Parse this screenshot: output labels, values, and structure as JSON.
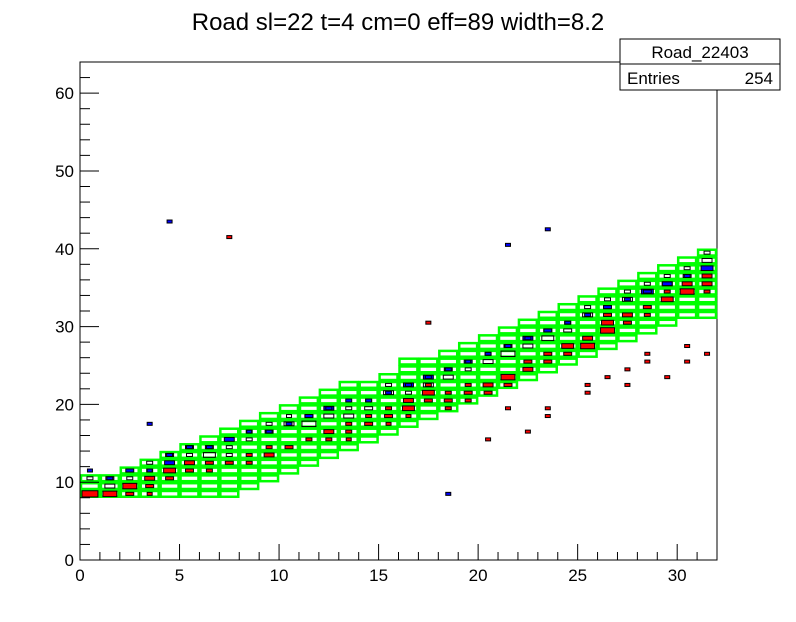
{
  "chart_data": {
    "type": "heatmap",
    "title": "Road sl=22 t=4 cm=0 eff=89 width=8.2",
    "xlabel": "",
    "ylabel": "",
    "xlim": [
      0,
      32
    ],
    "ylim": [
      0,
      64
    ],
    "x_ticks": [
      0,
      5,
      10,
      15,
      20,
      25,
      30
    ],
    "y_ticks": [
      0,
      10,
      20,
      30,
      40,
      50,
      60
    ],
    "grid": false,
    "stats_box": {
      "name": "Road_22403",
      "entries_label": "Entries",
      "entries_value": "254"
    },
    "colors": {
      "road_box": "#00ff00",
      "black_hist": "#000000",
      "blue_hist": "#0000ff",
      "red_hist": "#ff0000"
    },
    "road_bins": [
      {
        "x": 0,
        "y0": 8,
        "y1": 11
      },
      {
        "x": 1,
        "y0": 8,
        "y1": 11
      },
      {
        "x": 2,
        "y0": 8,
        "y1": 12
      },
      {
        "x": 3,
        "y0": 8,
        "y1": 13
      },
      {
        "x": 4,
        "y0": 8,
        "y1": 14
      },
      {
        "x": 5,
        "y0": 8,
        "y1": 15
      },
      {
        "x": 6,
        "y0": 8,
        "y1": 16
      },
      {
        "x": 7,
        "y0": 8,
        "y1": 17
      },
      {
        "x": 8,
        "y0": 9,
        "y1": 18
      },
      {
        "x": 9,
        "y0": 10,
        "y1": 19
      },
      {
        "x": 10,
        "y0": 11,
        "y1": 20
      },
      {
        "x": 11,
        "y0": 12,
        "y1": 21
      },
      {
        "x": 12,
        "y0": 13,
        "y1": 22
      },
      {
        "x": 13,
        "y0": 14,
        "y1": 23
      },
      {
        "x": 14,
        "y0": 15,
        "y1": 23
      },
      {
        "x": 15,
        "y0": 16,
        "y1": 24
      },
      {
        "x": 16,
        "y0": 17,
        "y1": 26
      },
      {
        "x": 17,
        "y0": 18,
        "y1": 26
      },
      {
        "x": 18,
        "y0": 19,
        "y1": 27
      },
      {
        "x": 19,
        "y0": 20,
        "y1": 28
      },
      {
        "x": 20,
        "y0": 21,
        "y1": 29
      },
      {
        "x": 21,
        "y0": 22,
        "y1": 30
      },
      {
        "x": 22,
        "y0": 23,
        "y1": 31
      },
      {
        "x": 23,
        "y0": 24,
        "y1": 32
      },
      {
        "x": 24,
        "y0": 25,
        "y1": 33
      },
      {
        "x": 25,
        "y0": 26,
        "y1": 34
      },
      {
        "x": 26,
        "y0": 27,
        "y1": 35
      },
      {
        "x": 27,
        "y0": 28,
        "y1": 36
      },
      {
        "x": 28,
        "y0": 29,
        "y1": 37
      },
      {
        "x": 29,
        "y0": 30,
        "y1": 38
      },
      {
        "x": 30,
        "y0": 31,
        "y1": 39
      },
      {
        "x": 31,
        "y0": 31,
        "y1": 40
      }
    ],
    "series": [
      {
        "color": "black",
        "cells": [
          [
            0,
            10,
            0.3
          ],
          [
            1,
            9,
            0.5
          ],
          [
            1,
            10,
            0.4
          ],
          [
            2,
            10,
            0.3
          ],
          [
            3,
            12,
            0.3
          ],
          [
            3,
            11,
            0.25
          ],
          [
            4,
            13,
            0.4
          ],
          [
            5,
            13,
            0.3
          ],
          [
            5,
            14,
            0.3
          ],
          [
            6,
            13,
            0.6
          ],
          [
            6,
            14,
            0.4
          ],
          [
            7,
            14,
            0.3
          ],
          [
            7,
            13,
            0.3
          ],
          [
            8,
            15,
            0.3
          ],
          [
            8,
            16,
            0.25
          ],
          [
            9,
            16,
            0.3
          ],
          [
            9,
            17,
            0.3
          ],
          [
            10,
            17,
            0.5
          ],
          [
            10,
            18,
            0.25
          ],
          [
            11,
            17,
            0.7
          ],
          [
            11,
            18,
            0.4
          ],
          [
            12,
            18,
            0.5
          ],
          [
            12,
            19,
            0.3
          ],
          [
            13,
            18,
            0.5
          ],
          [
            13,
            19,
            0.3
          ],
          [
            14,
            19,
            0.4
          ],
          [
            14,
            20,
            0.3
          ],
          [
            15,
            21,
            0.5
          ],
          [
            15,
            22,
            0.3
          ],
          [
            16,
            21,
            0.3
          ],
          [
            16,
            22,
            0.3
          ],
          [
            17,
            22,
            0.5
          ],
          [
            17,
            23,
            0.3
          ],
          [
            18,
            23,
            0.5
          ],
          [
            18,
            24,
            0.3
          ],
          [
            19,
            24,
            0.3
          ],
          [
            19,
            25,
            0.25
          ],
          [
            20,
            25,
            0.5
          ],
          [
            20,
            26,
            0.3
          ],
          [
            21,
            26,
            0.7
          ],
          [
            21,
            27,
            0.4
          ],
          [
            22,
            27,
            0.5
          ],
          [
            22,
            28,
            0.3
          ],
          [
            23,
            28,
            0.6
          ],
          [
            23,
            29,
            0.4
          ],
          [
            24,
            29,
            0.4
          ],
          [
            24,
            30,
            0.3
          ],
          [
            25,
            31,
            0.5
          ],
          [
            25,
            32,
            0.3
          ],
          [
            26,
            32,
            0.4
          ],
          [
            26,
            33,
            0.3
          ],
          [
            27,
            33,
            0.5
          ],
          [
            27,
            34,
            0.3
          ],
          [
            28,
            34,
            0.4
          ],
          [
            28,
            35,
            0.3
          ],
          [
            29,
            35,
            0.5
          ],
          [
            29,
            36,
            0.3
          ],
          [
            30,
            36,
            0.4
          ],
          [
            30,
            37,
            0.3
          ],
          [
            31,
            38,
            0.5
          ],
          [
            31,
            39,
            0.3
          ]
        ]
      },
      {
        "color": "blue",
        "cells": [
          [
            0,
            11,
            0.2
          ],
          [
            1,
            10,
            0.3
          ],
          [
            2,
            11,
            0.4
          ],
          [
            3,
            11,
            0.3
          ],
          [
            4,
            12,
            0.5
          ],
          [
            4,
            13,
            0.3
          ],
          [
            5,
            14,
            0.4
          ],
          [
            6,
            14,
            0.3
          ],
          [
            7,
            15,
            0.5
          ],
          [
            8,
            16,
            0.3
          ],
          [
            9,
            16,
            0.4
          ],
          [
            10,
            17,
            0.3
          ],
          [
            11,
            18,
            0.4
          ],
          [
            12,
            19,
            0.5
          ],
          [
            13,
            20,
            0.3
          ],
          [
            14,
            20,
            0.3
          ],
          [
            15,
            21,
            0.3
          ],
          [
            16,
            22,
            0.5
          ],
          [
            17,
            23,
            0.5
          ],
          [
            18,
            24,
            0.4
          ],
          [
            19,
            25,
            0.4
          ],
          [
            20,
            26,
            0.3
          ],
          [
            21,
            27,
            0.3
          ],
          [
            22,
            28,
            0.5
          ],
          [
            23,
            29,
            0.4
          ],
          [
            24,
            30,
            0.3
          ],
          [
            25,
            31,
            0.3
          ],
          [
            26,
            32,
            0.4
          ],
          [
            27,
            33,
            0.3
          ],
          [
            28,
            34,
            0.6
          ],
          [
            29,
            35,
            0.5
          ],
          [
            30,
            36,
            0.3
          ],
          [
            31,
            37,
            0.6
          ],
          [
            4,
            43,
            0.2
          ],
          [
            3,
            17,
            0.2
          ],
          [
            18,
            8,
            0.2
          ],
          [
            21,
            40,
            0.2
          ],
          [
            23,
            42,
            0.2
          ]
        ]
      },
      {
        "color": "red",
        "cells": [
          [
            0,
            8,
            0.8
          ],
          [
            1,
            8,
            0.7
          ],
          [
            2,
            9,
            0.7
          ],
          [
            2,
            8,
            0.4
          ],
          [
            3,
            10,
            0.5
          ],
          [
            3,
            9,
            0.4
          ],
          [
            3,
            8,
            0.2
          ],
          [
            4,
            11,
            0.6
          ],
          [
            4,
            10,
            0.4
          ],
          [
            5,
            12,
            0.5
          ],
          [
            5,
            11,
            0.4
          ],
          [
            6,
            12,
            0.4
          ],
          [
            6,
            11,
            0.3
          ],
          [
            7,
            12,
            0.4
          ],
          [
            8,
            12,
            0.3
          ],
          [
            8,
            13,
            0.3
          ],
          [
            9,
            13,
            0.5
          ],
          [
            9,
            14,
            0.3
          ],
          [
            10,
            14,
            0.4
          ],
          [
            11,
            15,
            0.3
          ],
          [
            12,
            16,
            0.5
          ],
          [
            12,
            15,
            0.3
          ],
          [
            13,
            16,
            0.3
          ],
          [
            13,
            17,
            0.3
          ],
          [
            14,
            17,
            0.4
          ],
          [
            14,
            18,
            0.3
          ],
          [
            15,
            18,
            0.4
          ],
          [
            15,
            19,
            0.3
          ],
          [
            16,
            19,
            0.6
          ],
          [
            16,
            20,
            0.5
          ],
          [
            17,
            21,
            0.6
          ],
          [
            17,
            20,
            0.4
          ],
          [
            17,
            22,
            0.3
          ],
          [
            18,
            20,
            0.4
          ],
          [
            18,
            21,
            0.3
          ],
          [
            19,
            21,
            0.4
          ],
          [
            19,
            22,
            0.3
          ],
          [
            20,
            22,
            0.5
          ],
          [
            20,
            21,
            0.4
          ],
          [
            21,
            23,
            0.7
          ],
          [
            21,
            22,
            0.4
          ],
          [
            22,
            24,
            0.5
          ],
          [
            22,
            25,
            0.4
          ],
          [
            23,
            25,
            0.4
          ],
          [
            23,
            26,
            0.4
          ],
          [
            24,
            27,
            0.6
          ],
          [
            24,
            26,
            0.4
          ],
          [
            25,
            27,
            0.7
          ],
          [
            25,
            28,
            0.5
          ],
          [
            26,
            29,
            0.7
          ],
          [
            26,
            30,
            0.6
          ],
          [
            26,
            31,
            0.4
          ],
          [
            27,
            31,
            0.5
          ],
          [
            27,
            30,
            0.4
          ],
          [
            28,
            32,
            0.4
          ],
          [
            28,
            31,
            0.3
          ],
          [
            29,
            33,
            0.6
          ],
          [
            29,
            34,
            0.3
          ],
          [
            30,
            34,
            0.7
          ],
          [
            30,
            35,
            0.5
          ],
          [
            31,
            35,
            0.5
          ],
          [
            31,
            36,
            0.5
          ],
          [
            31,
            34,
            0.3
          ],
          [
            7,
            41,
            0.2
          ],
          [
            17,
            30,
            0.2
          ],
          [
            20,
            15,
            0.2
          ],
          [
            21,
            19,
            0.2
          ],
          [
            22,
            16,
            0.2
          ],
          [
            23,
            18,
            0.2
          ],
          [
            23,
            19,
            0.2
          ],
          [
            25,
            22,
            0.2
          ],
          [
            25,
            21,
            0.2
          ],
          [
            26,
            23,
            0.2
          ],
          [
            27,
            24,
            0.2
          ],
          [
            27,
            22,
            0.2
          ],
          [
            28,
            26,
            0.2
          ],
          [
            28,
            25,
            0.2
          ],
          [
            29,
            23,
            0.2
          ],
          [
            30,
            27,
            0.2
          ],
          [
            30,
            25,
            0.2
          ],
          [
            31,
            26,
            0.2
          ],
          [
            18,
            19,
            0.3
          ],
          [
            19,
            20,
            0.3
          ],
          [
            16,
            18,
            0.2
          ],
          [
            15,
            17,
            0.2
          ],
          [
            13,
            15,
            0.2
          ]
        ]
      }
    ]
  }
}
